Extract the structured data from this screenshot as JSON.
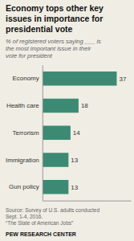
{
  "chart_data": {
    "type": "bar",
    "orientation": "horizontal",
    "title": "Economy tops other key\nissues in importance for\npresidential vote",
    "subtitle": "% of registered voters saying ___ is\nthe most important issue in their\nvote for president",
    "categories": [
      "Economy",
      "Health care",
      "Terrorism",
      "Immigration",
      "Gun policy"
    ],
    "values": [
      37,
      18,
      14,
      13,
      13
    ],
    "color": "#3d8a74",
    "xlim": [
      0,
      44
    ],
    "data_labels": true,
    "tick_labels": "y",
    "grid": false,
    "annotations": [
      "Source: Survey of U.S. adults conducted\nSept. 1-4, 2016.\n“The State of American Jobs”",
      "PEW RESEARCH CENTER"
    ]
  }
}
